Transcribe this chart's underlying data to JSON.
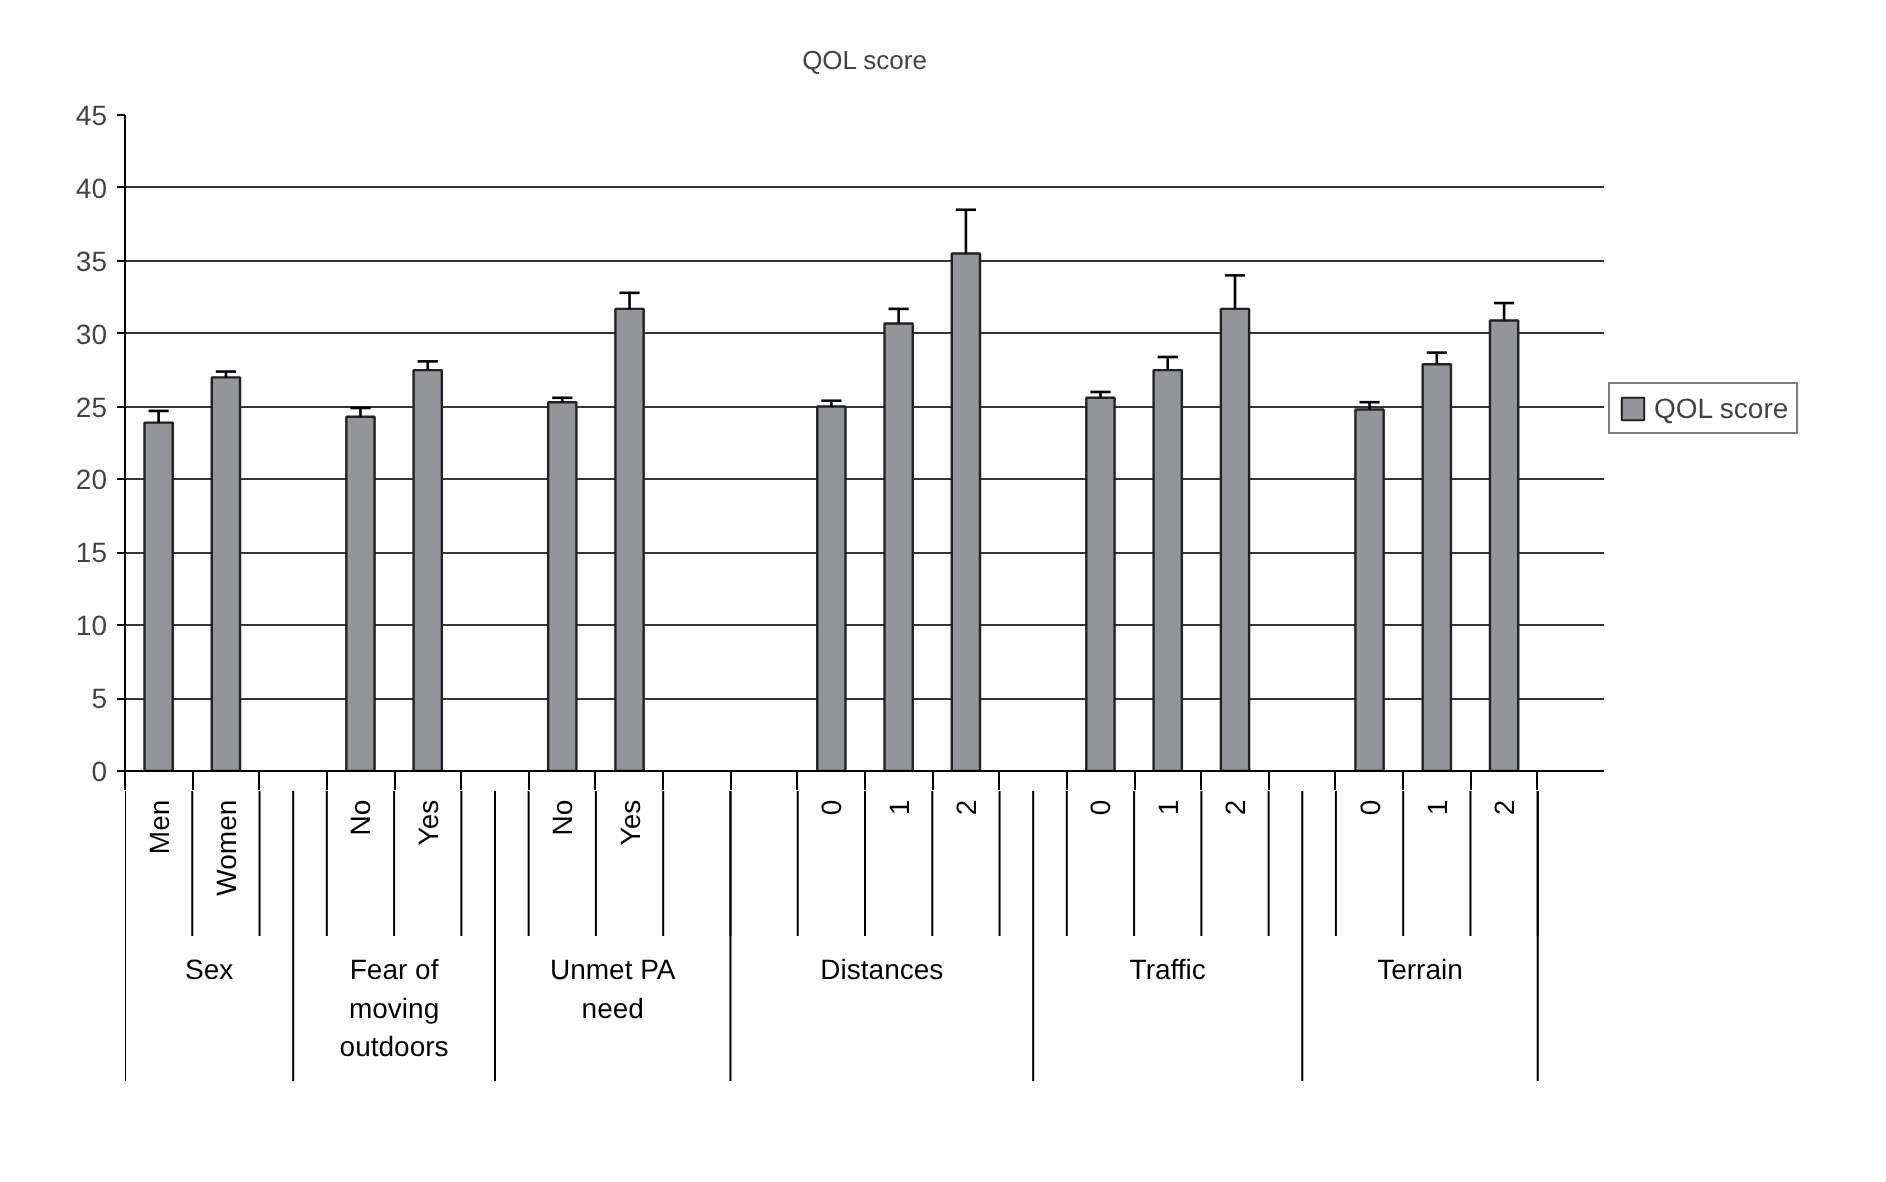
{
  "chart_data": {
    "type": "bar",
    "title": "QOL score",
    "categories": [
      "Men",
      "Women",
      null,
      "No",
      "Yes",
      null,
      "No",
      "Yes",
      null,
      null,
      "0",
      "1",
      "2",
      null,
      "0",
      "1",
      "2",
      null,
      "0",
      "1",
      "2",
      null
    ],
    "series": [
      {
        "name": "QOL score",
        "color": "#939598",
        "values": [
          23.9,
          27.0,
          null,
          24.3,
          27.5,
          null,
          25.3,
          31.7,
          null,
          null,
          25.0,
          30.7,
          35.5,
          null,
          25.6,
          27.5,
          31.7,
          null,
          24.8,
          27.9,
          30.9,
          null
        ],
        "errors": [
          [
            23.9,
            24.7
          ],
          [
            27.0,
            27.4
          ],
          null,
          [
            24.3,
            24.9
          ],
          [
            27.5,
            28.1
          ],
          null,
          [
            25.3,
            25.6
          ],
          [
            31.7,
            32.8
          ],
          null,
          null,
          [
            25.0,
            25.4
          ],
          [
            30.7,
            31.7
          ],
          [
            35.5,
            38.5
          ],
          null,
          [
            25.6,
            26.0
          ],
          [
            27.5,
            28.4
          ],
          [
            31.7,
            34.0
          ],
          null,
          [
            24.8,
            25.3
          ],
          [
            27.9,
            28.7
          ],
          [
            30.9,
            32.1
          ],
          null
        ]
      }
    ],
    "ylim": [
      0,
      45
    ],
    "yticks": [
      0,
      5,
      10,
      15,
      20,
      25,
      30,
      35,
      40,
      45
    ],
    "grid": "y",
    "legend": "right",
    "annotations": [
      "Sex",
      "Fear of moving outdoors",
      "Unmet PA need",
      "Distances",
      "Traffic",
      "Terrain"
    ]
  }
}
